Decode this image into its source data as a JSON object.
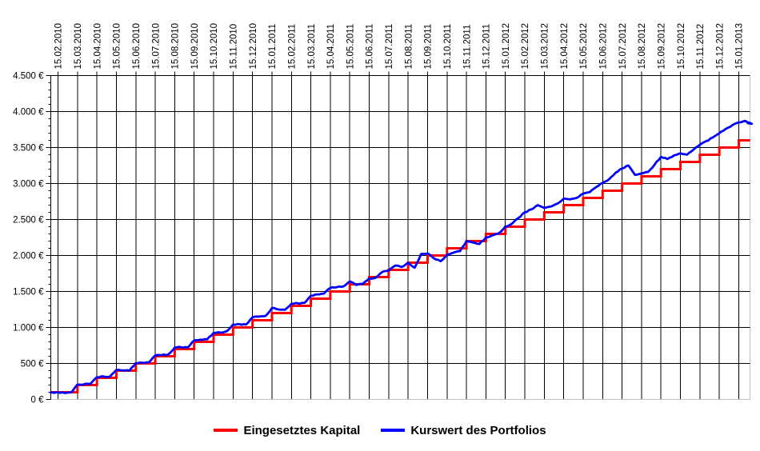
{
  "chart_data": {
    "type": "line",
    "title": "",
    "x_axis": {
      "position": "top",
      "label_rotation_deg": -90,
      "tick_labels": [
        "15.02.2010",
        "15.03.2010",
        "15.04.2010",
        "15.05.2010",
        "15.06.2010",
        "15.07.2010",
        "15.08.2010",
        "15.09.2010",
        "15.10.2010",
        "15.11.2010",
        "15.12.2010",
        "15.01.2011",
        "15.02.2011",
        "15.03.2011",
        "15.04.2011",
        "15.05.2011",
        "15.06.2011",
        "15.07.2011",
        "15.08.2011",
        "15.09.2011",
        "15.10.2011",
        "15.11.2011",
        "15.12.2011",
        "15.01.2012",
        "15.02.2012",
        "15.03.2012",
        "15.04.2012",
        "15.05.2012",
        "15.06.2012",
        "15.07.2012",
        "15.08.2012",
        "15.09.2012",
        "15.10.2012",
        "15.11.2012",
        "15.12.2012",
        "15.01.2013"
      ]
    },
    "y_axis": {
      "min": 0,
      "max": 4500,
      "major_step": 500,
      "minor_step": 100,
      "tick_labels": [
        "0 €",
        "500 €",
        "1.000 €",
        "1.500 €",
        "2.000 €",
        "2.500 €",
        "3.000 €",
        "3.500 €",
        "4.000 €",
        "4.500 €"
      ]
    },
    "grid": {
      "vertical": true,
      "horizontal": true,
      "line_color": "#000000",
      "zero_line_color": "#C0C0C0",
      "right_border_color": "#C0C0C0",
      "background": "#FFFFFF"
    },
    "legend": {
      "position": "bottom",
      "items": [
        "Eingesetztes Kapital",
        "Kurswert des Portfolios"
      ]
    },
    "series": [
      {
        "name": "Eingesetztes Kapital",
        "color": "#FF0000",
        "style": "step",
        "monthly_contribution_eur": 100,
        "values": [
          100,
          200,
          300,
          400,
          500,
          600,
          700,
          800,
          900,
          1000,
          1100,
          1200,
          1300,
          1400,
          1500,
          1600,
          1700,
          1800,
          1900,
          2000,
          2100,
          2200,
          2300,
          2400,
          2500,
          2600,
          2700,
          2800,
          2900,
          3000,
          3100,
          3200,
          3300,
          3400,
          3500,
          3600
        ]
      },
      {
        "name": "Kurswert des Portfolios",
        "color": "#0000FF",
        "style": "line",
        "points_per_month": 3,
        "values_fine": [
          [
            95,
            90,
            95
          ],
          [
            205,
            210,
            215
          ],
          [
            310,
            320,
            315
          ],
          [
            410,
            405,
            400
          ],
          [
            500,
            510,
            515
          ],
          [
            610,
            615,
            625
          ],
          [
            720,
            725,
            720
          ],
          [
            820,
            830,
            835
          ],
          [
            925,
            930,
            945
          ],
          [
            1040,
            1045,
            1040
          ],
          [
            1140,
            1150,
            1160
          ],
          [
            1270,
            1250,
            1245
          ],
          [
            1330,
            1335,
            1340
          ],
          [
            1440,
            1460,
            1470
          ],
          [
            1550,
            1560,
            1570
          ],
          [
            1640,
            1590,
            1605
          ],
          [
            1680,
            1690,
            1770
          ],
          [
            1790,
            1860,
            1840
          ],
          [
            1900,
            1830,
            2020
          ],
          [
            2030,
            1960,
            1920
          ],
          [
            2010,
            2040,
            2060
          ],
          [
            2200,
            2180,
            2160
          ],
          [
            2250,
            2280,
            2310
          ],
          [
            2400,
            2440,
            2520
          ],
          [
            2600,
            2640,
            2700
          ],
          [
            2660,
            2680,
            2720
          ],
          [
            2790,
            2780,
            2800
          ],
          [
            2860,
            2880,
            2950
          ],
          [
            3010,
            3060,
            3150
          ],
          [
            3210,
            3250,
            3120
          ],
          [
            3140,
            3160,
            3260
          ],
          [
            3370,
            3340,
            3390
          ],
          [
            3420,
            3400,
            3470
          ],
          [
            3540,
            3590,
            3640
          ],
          [
            3700,
            3760,
            3810
          ],
          [
            3850,
            3870,
            3830
          ]
        ],
        "end_value": 3840
      }
    ]
  }
}
